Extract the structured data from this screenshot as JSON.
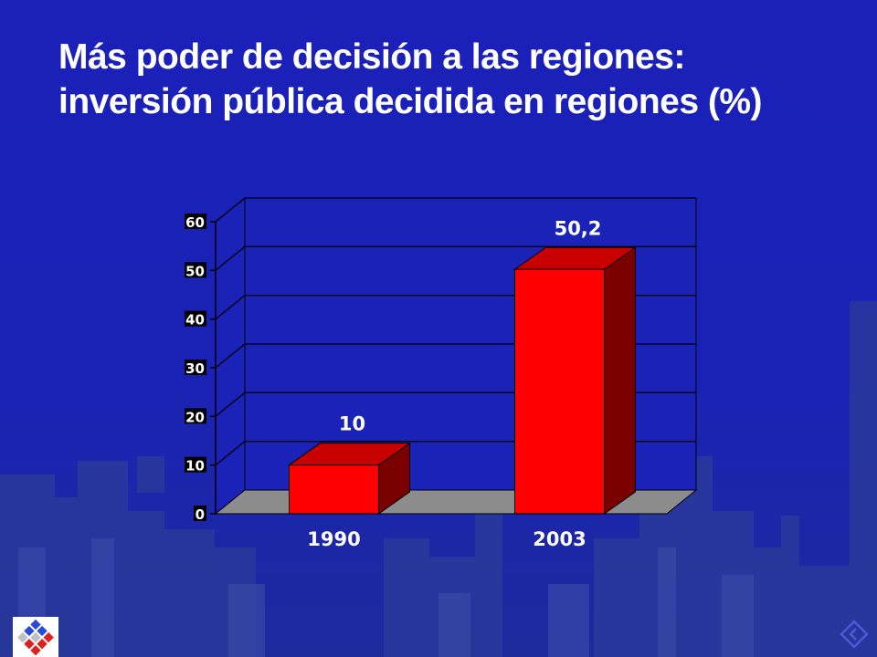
{
  "slide": {
    "title_line1": "Más poder de decisión a las regiones:",
    "title_line2": "inversión pública decidida en regiones (%)"
  },
  "colors": {
    "background": "#1b22b8",
    "bar_front": "#ff0000",
    "bar_top": "#c80000",
    "bar_side": "#7a0000",
    "floor": "#8c8c8c"
  },
  "icons": [
    "city-skyline-background",
    "logo-icon",
    "nav-arrow-icon"
  ],
  "chart_data": {
    "type": "bar",
    "categories": [
      "1990",
      "2003"
    ],
    "values": [
      10,
      50.2
    ],
    "data_labels": [
      "10",
      "50,2"
    ],
    "ylim": [
      0,
      60
    ],
    "yticks": [
      0,
      10,
      20,
      30,
      40,
      50,
      60
    ],
    "title": "",
    "xlabel": "",
    "ylabel": "",
    "grid": true,
    "style": "3d",
    "legend": "none"
  }
}
